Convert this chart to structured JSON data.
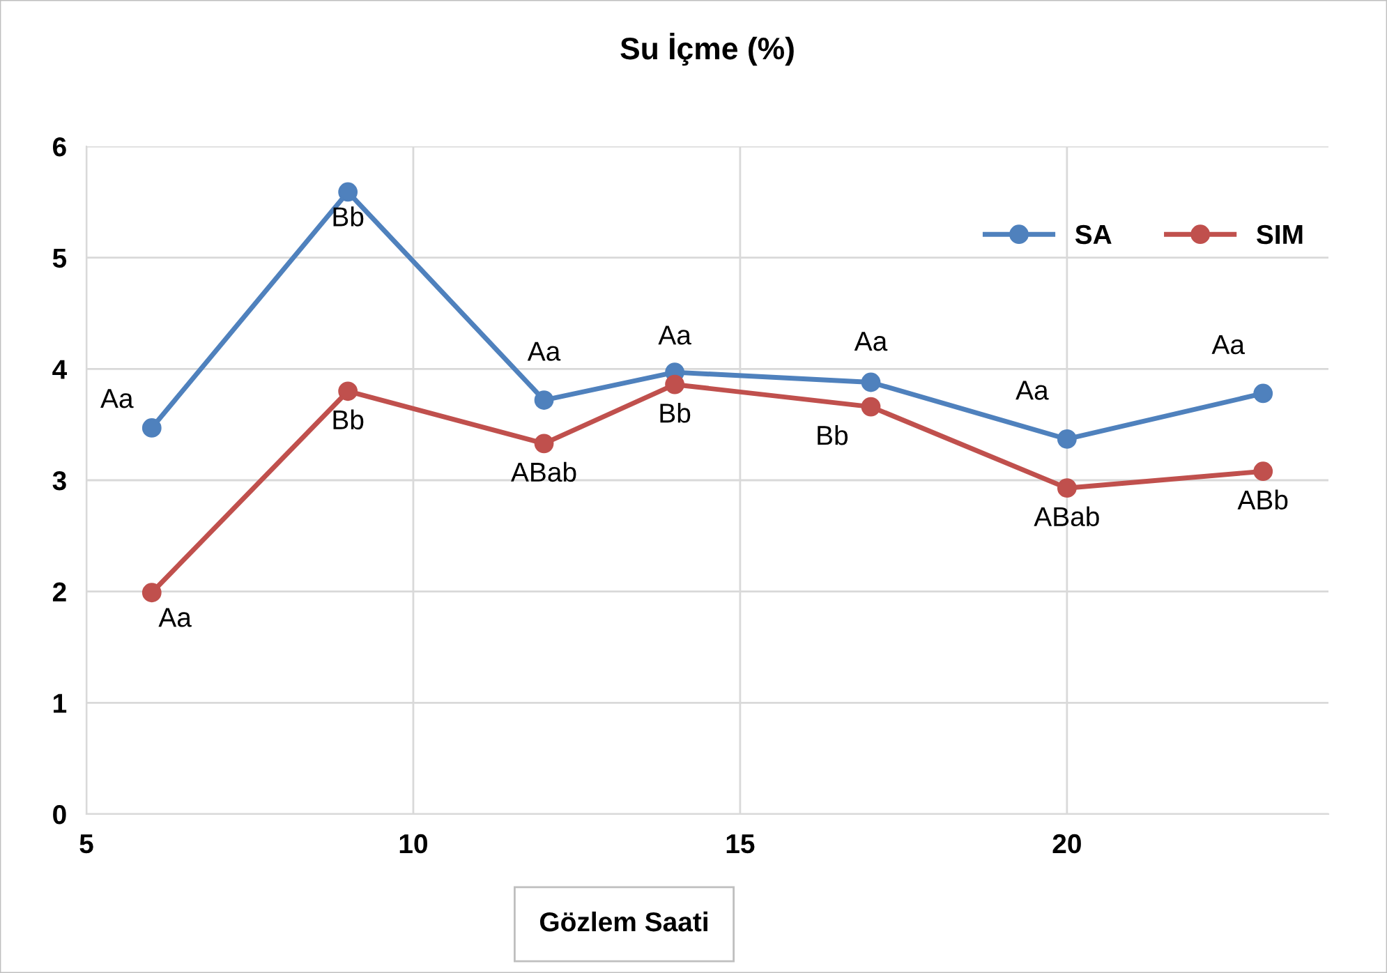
{
  "chart_data": {
    "type": "line",
    "title": "Su İçme (%)",
    "xlabel": "Gözlem Saati",
    "x": [
      6,
      9,
      12,
      14,
      17,
      20,
      23
    ],
    "series": [
      {
        "name": "SA",
        "color": "#4f81bd",
        "values": [
          3.47,
          5.59,
          3.72,
          3.97,
          3.88,
          3.37,
          3.78
        ]
      },
      {
        "name": "SIM",
        "color": "#c0504d",
        "values": [
          1.99,
          3.8,
          3.33,
          3.86,
          3.66,
          2.93,
          3.08
        ]
      }
    ],
    "xlim": [
      5,
      24
    ],
    "xticks": [
      5,
      10,
      15,
      20
    ],
    "ylim": [
      0,
      6
    ],
    "yticks": [
      0,
      1,
      2,
      3,
      4,
      5,
      6
    ],
    "grid": true,
    "legend": "top right",
    "marker": "circle",
    "line_style": "solid",
    "annotations": [
      {
        "text": "Aa",
        "x": 6,
        "y": 3.47
      },
      {
        "text": "Bb",
        "x": 9,
        "y": 5.59
      },
      {
        "text": "Aa",
        "x": 12,
        "y": 3.72
      },
      {
        "text": "Aa",
        "x": 14,
        "y": 3.97
      },
      {
        "text": "Aa",
        "x": 17,
        "y": 3.88
      },
      {
        "text": "Aa",
        "x": 20,
        "y": 3.37
      },
      {
        "text": "Aa",
        "x": 23,
        "y": 3.78
      },
      {
        "text": "Aa",
        "x": 6,
        "y": 1.99
      },
      {
        "text": "Bb",
        "x": 9,
        "y": 3.8
      },
      {
        "text": "ABab",
        "x": 12,
        "y": 3.33
      },
      {
        "text": "Bb",
        "x": 14,
        "y": 3.86
      },
      {
        "text": "Bb",
        "x": 17,
        "y": 3.66
      },
      {
        "text": "ABab",
        "x": 20,
        "y": 2.93
      },
      {
        "text": "ABb",
        "x": 23,
        "y": 3.08
      }
    ]
  }
}
